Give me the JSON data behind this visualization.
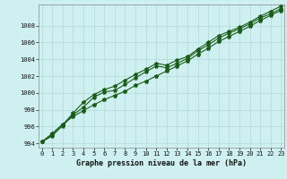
{
  "background_color": "#cff0f0",
  "grid_color": "#b0d8d8",
  "line_color": "#1a5c1a",
  "x": [
    0,
    1,
    2,
    3,
    4,
    5,
    6,
    7,
    8,
    9,
    10,
    11,
    12,
    13,
    14,
    15,
    16,
    17,
    18,
    19,
    20,
    21,
    22,
    23
  ],
  "line1": [
    994.2,
    995.2,
    996.3,
    997.2,
    997.9,
    998.6,
    999.2,
    999.7,
    1000.2,
    1000.9,
    1001.4,
    1002.0,
    1002.6,
    1003.2,
    1003.8,
    1004.6,
    1005.3,
    1006.1,
    1006.7,
    1007.3,
    1007.9,
    1008.6,
    1009.2,
    1009.8
  ],
  "line2": [
    994.2,
    995.0,
    996.1,
    997.4,
    998.3,
    999.5,
    1000.1,
    1000.3,
    1001.0,
    1001.8,
    1002.5,
    1003.2,
    1003.0,
    1003.5,
    1004.1,
    1005.0,
    1005.7,
    1006.5,
    1007.1,
    1007.6,
    1008.2,
    1008.9,
    1009.4,
    1010.0
  ],
  "line3": [
    994.2,
    994.9,
    996.2,
    997.6,
    998.9,
    999.8,
    1000.4,
    1000.8,
    1001.5,
    1002.2,
    1002.8,
    1003.5,
    1003.3,
    1003.9,
    1004.3,
    1005.2,
    1006.0,
    1006.8,
    1007.3,
    1007.8,
    1008.4,
    1009.1,
    1009.7,
    1010.3
  ],
  "yticks": [
    994,
    996,
    998,
    1000,
    1002,
    1004,
    1006,
    1008
  ],
  "xticks": [
    0,
    1,
    2,
    3,
    4,
    5,
    6,
    7,
    8,
    9,
    10,
    11,
    12,
    13,
    14,
    15,
    16,
    17,
    18,
    19,
    20,
    21,
    22,
    23
  ],
  "xlabel": "Graphe pression niveau de la mer (hPa)",
  "tick_fontsize": 5.0,
  "label_fontsize": 6.0,
  "ylim_min": 993.5,
  "ylim_max": 1010.5
}
